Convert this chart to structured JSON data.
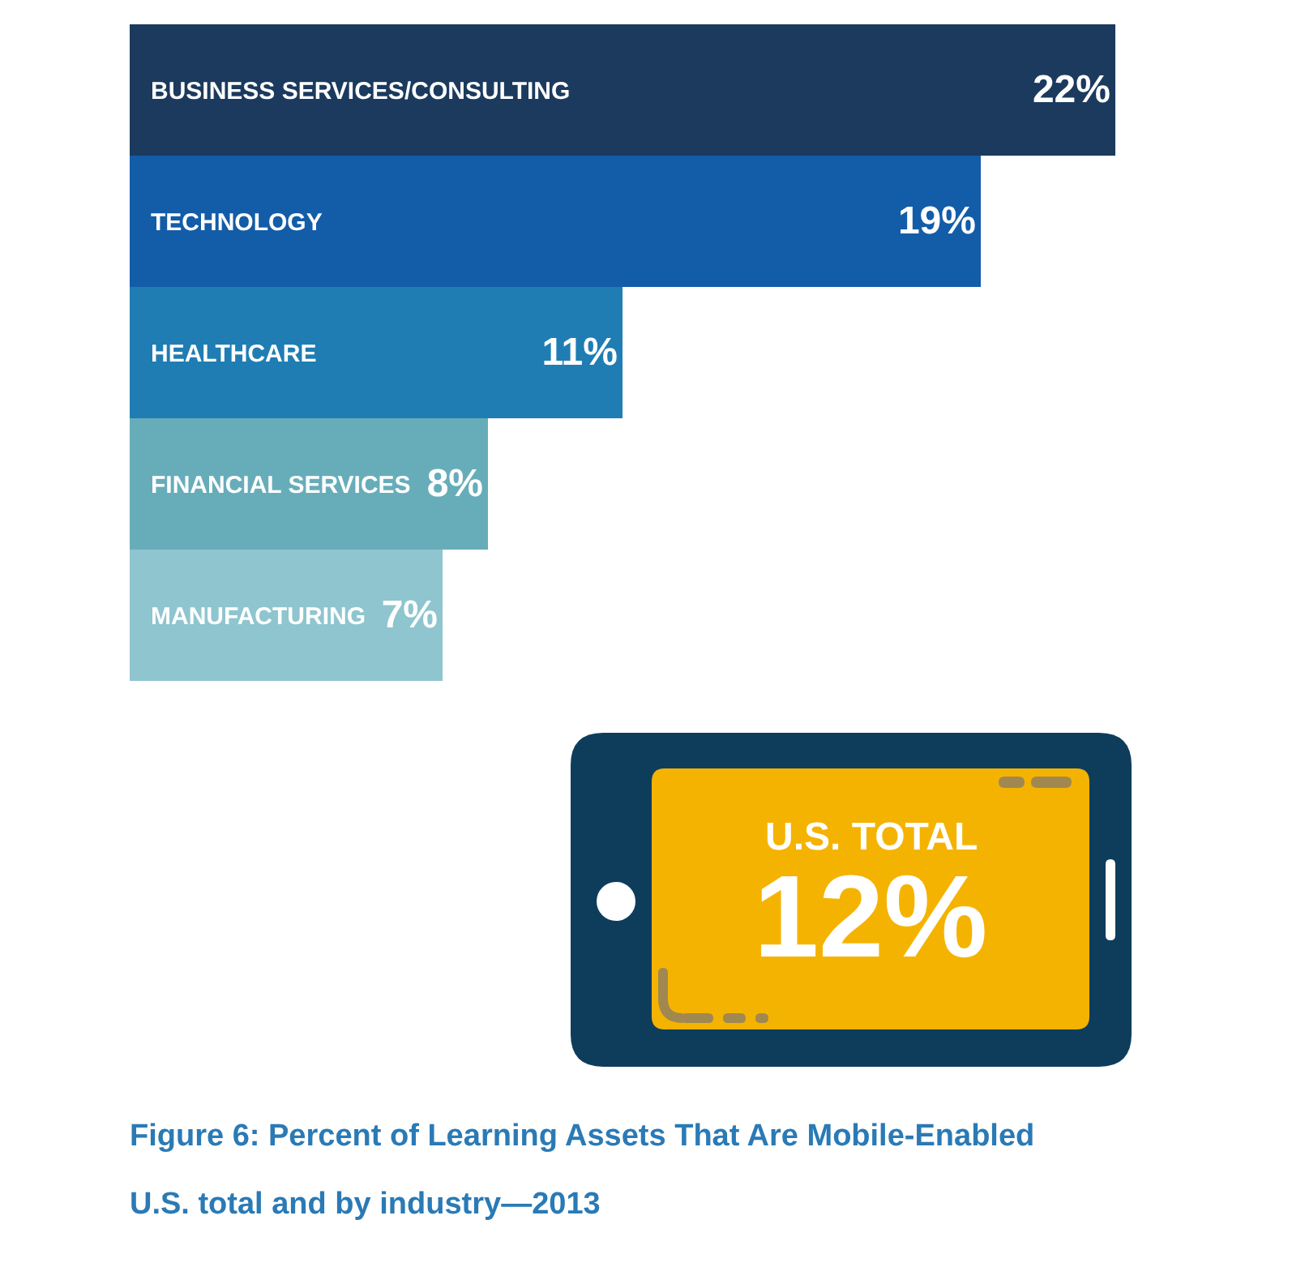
{
  "chart_data": {
    "type": "bar",
    "orientation": "horizontal",
    "title": "Figure 6: Percent of Learning Assets That Are Mobile-Enabled",
    "subtitle": "U.S. total and by industry—2013",
    "categories": [
      "BUSINESS SERVICES/CONSULTING",
      "TECHNOLOGY",
      "HEALTHCARE",
      "FINANCIAL SERVICES",
      "MANUFACTURING"
    ],
    "values": [
      22,
      19,
      11,
      8,
      7
    ],
    "value_labels": [
      "22%",
      "19%",
      "11%",
      "8%",
      "7%"
    ],
    "colors": [
      "#1b3a5e",
      "#135ca8",
      "#1f7db3",
      "#67adb9",
      "#8ec5cf"
    ],
    "tick_labels": "y",
    "annotations": [
      "U.S. TOTAL",
      "12%"
    ]
  }
}
